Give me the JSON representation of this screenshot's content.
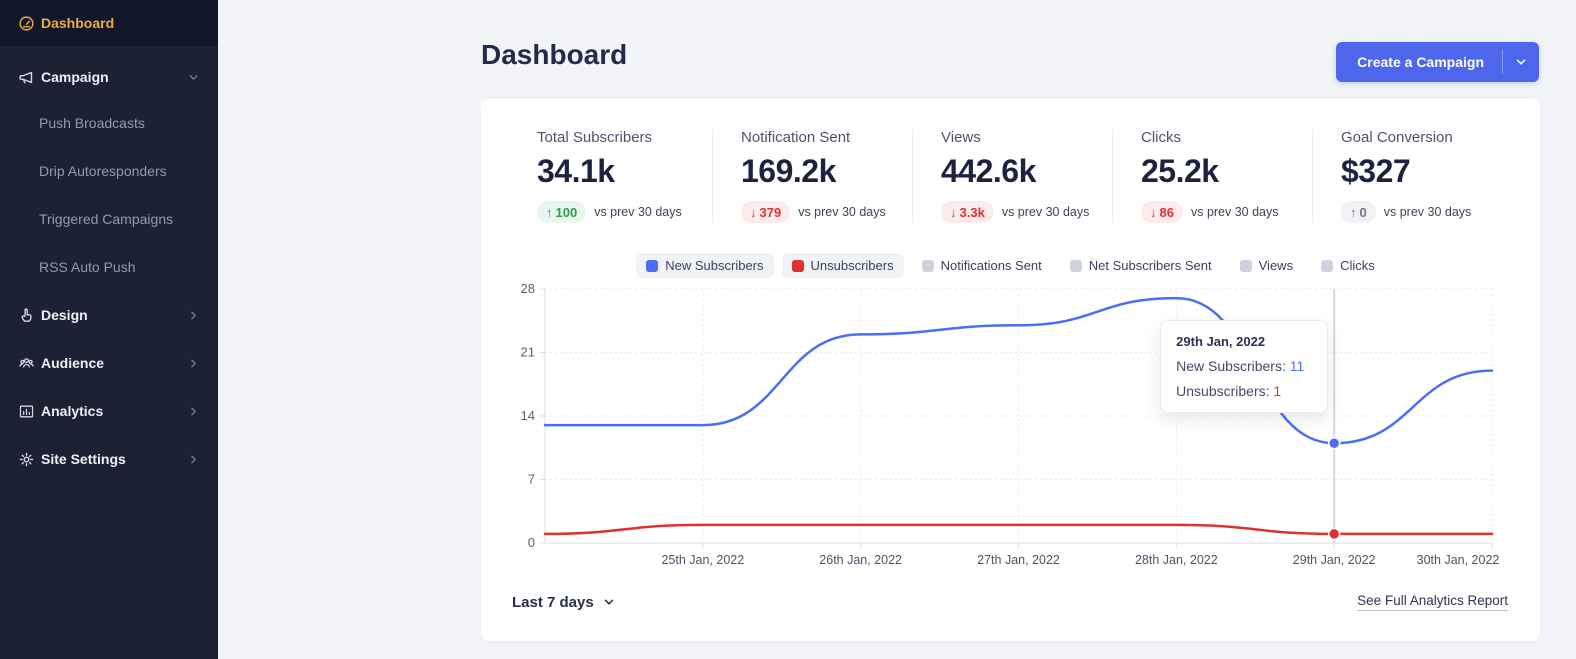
{
  "colors": {
    "accent": "#4d66ec",
    "positive": "#2f9e44",
    "negative": "#e03131",
    "neutral": "#70768c",
    "sidebar_active_text": "#ecaa43",
    "legend_inactive_swatch": "#cdd2db"
  },
  "sidebar": {
    "items": [
      {
        "label": "Dashboard",
        "icon": "gauge-icon",
        "active": true
      },
      {
        "label": "Campaign",
        "icon": "megaphone-icon",
        "expanded": true,
        "children": [
          "Push Broadcasts",
          "Drip Autoresponders",
          "Triggered Campaigns",
          "RSS Auto Push"
        ]
      },
      {
        "label": "Design",
        "icon": "tap-icon"
      },
      {
        "label": "Audience",
        "icon": "people-icon"
      },
      {
        "label": "Analytics",
        "icon": "bar-chart-icon"
      },
      {
        "label": "Site Settings",
        "icon": "gear-icon"
      }
    ]
  },
  "header": {
    "title": "Dashboard",
    "create_button": "Create a Campaign"
  },
  "stats": [
    {
      "label": "Total Subscribers",
      "value": "34.1k",
      "delta": "100",
      "direction": "up",
      "tone": "positive",
      "suffix": "vs prev 30 days"
    },
    {
      "label": "Notification Sent",
      "value": "169.2k",
      "delta": "379",
      "direction": "down",
      "tone": "negative",
      "suffix": "vs prev 30 days"
    },
    {
      "label": "Views",
      "value": "442.6k",
      "delta": "3.3k",
      "direction": "down",
      "tone": "negative",
      "suffix": "vs prev 30 days"
    },
    {
      "label": "Clicks",
      "value": "25.2k",
      "delta": "86",
      "direction": "down",
      "tone": "negative",
      "suffix": "vs prev 30 days"
    },
    {
      "label": "Goal Conversion",
      "value": "$327",
      "delta": "0",
      "direction": "up",
      "tone": "neutral",
      "suffix": "vs prev 30 days"
    }
  ],
  "chart_data": {
    "type": "line",
    "categories": [
      "",
      "25th Jan, 2022",
      "26th Jan, 2022",
      "27th Jan, 2022",
      "28th Jan, 2022",
      "29th Jan, 2022",
      "30th Jan, 2022"
    ],
    "series": [
      {
        "name": "New Subscribers",
        "active": true,
        "color": "#4c6ef5",
        "values": [
          13,
          13,
          23,
          24,
          27,
          11,
          19
        ]
      },
      {
        "name": "Unsubscribers",
        "active": true,
        "color": "#e03131",
        "values": [
          1,
          2,
          2,
          2,
          2,
          1,
          1
        ]
      },
      {
        "name": "Notifications Sent",
        "active": false
      },
      {
        "name": "Net Subscribers Sent",
        "active": false
      },
      {
        "name": "Views",
        "active": false
      },
      {
        "name": "Clicks",
        "active": false
      }
    ],
    "ylim": [
      0,
      28
    ],
    "yticks": [
      0,
      7,
      14,
      21,
      28
    ],
    "grid": "dotted",
    "legend_position": "top",
    "tooltip": {
      "index": 5,
      "date": "29th Jan, 2022",
      "rows": [
        {
          "label": "New Subscribers:",
          "value": "11",
          "color": "#4c6ef5"
        },
        {
          "label": "Unsubscribers:",
          "value": "1",
          "color": "#e03131"
        }
      ]
    }
  },
  "footer": {
    "range_label": "Last 7 days",
    "report_link": "See Full Analytics Report"
  }
}
